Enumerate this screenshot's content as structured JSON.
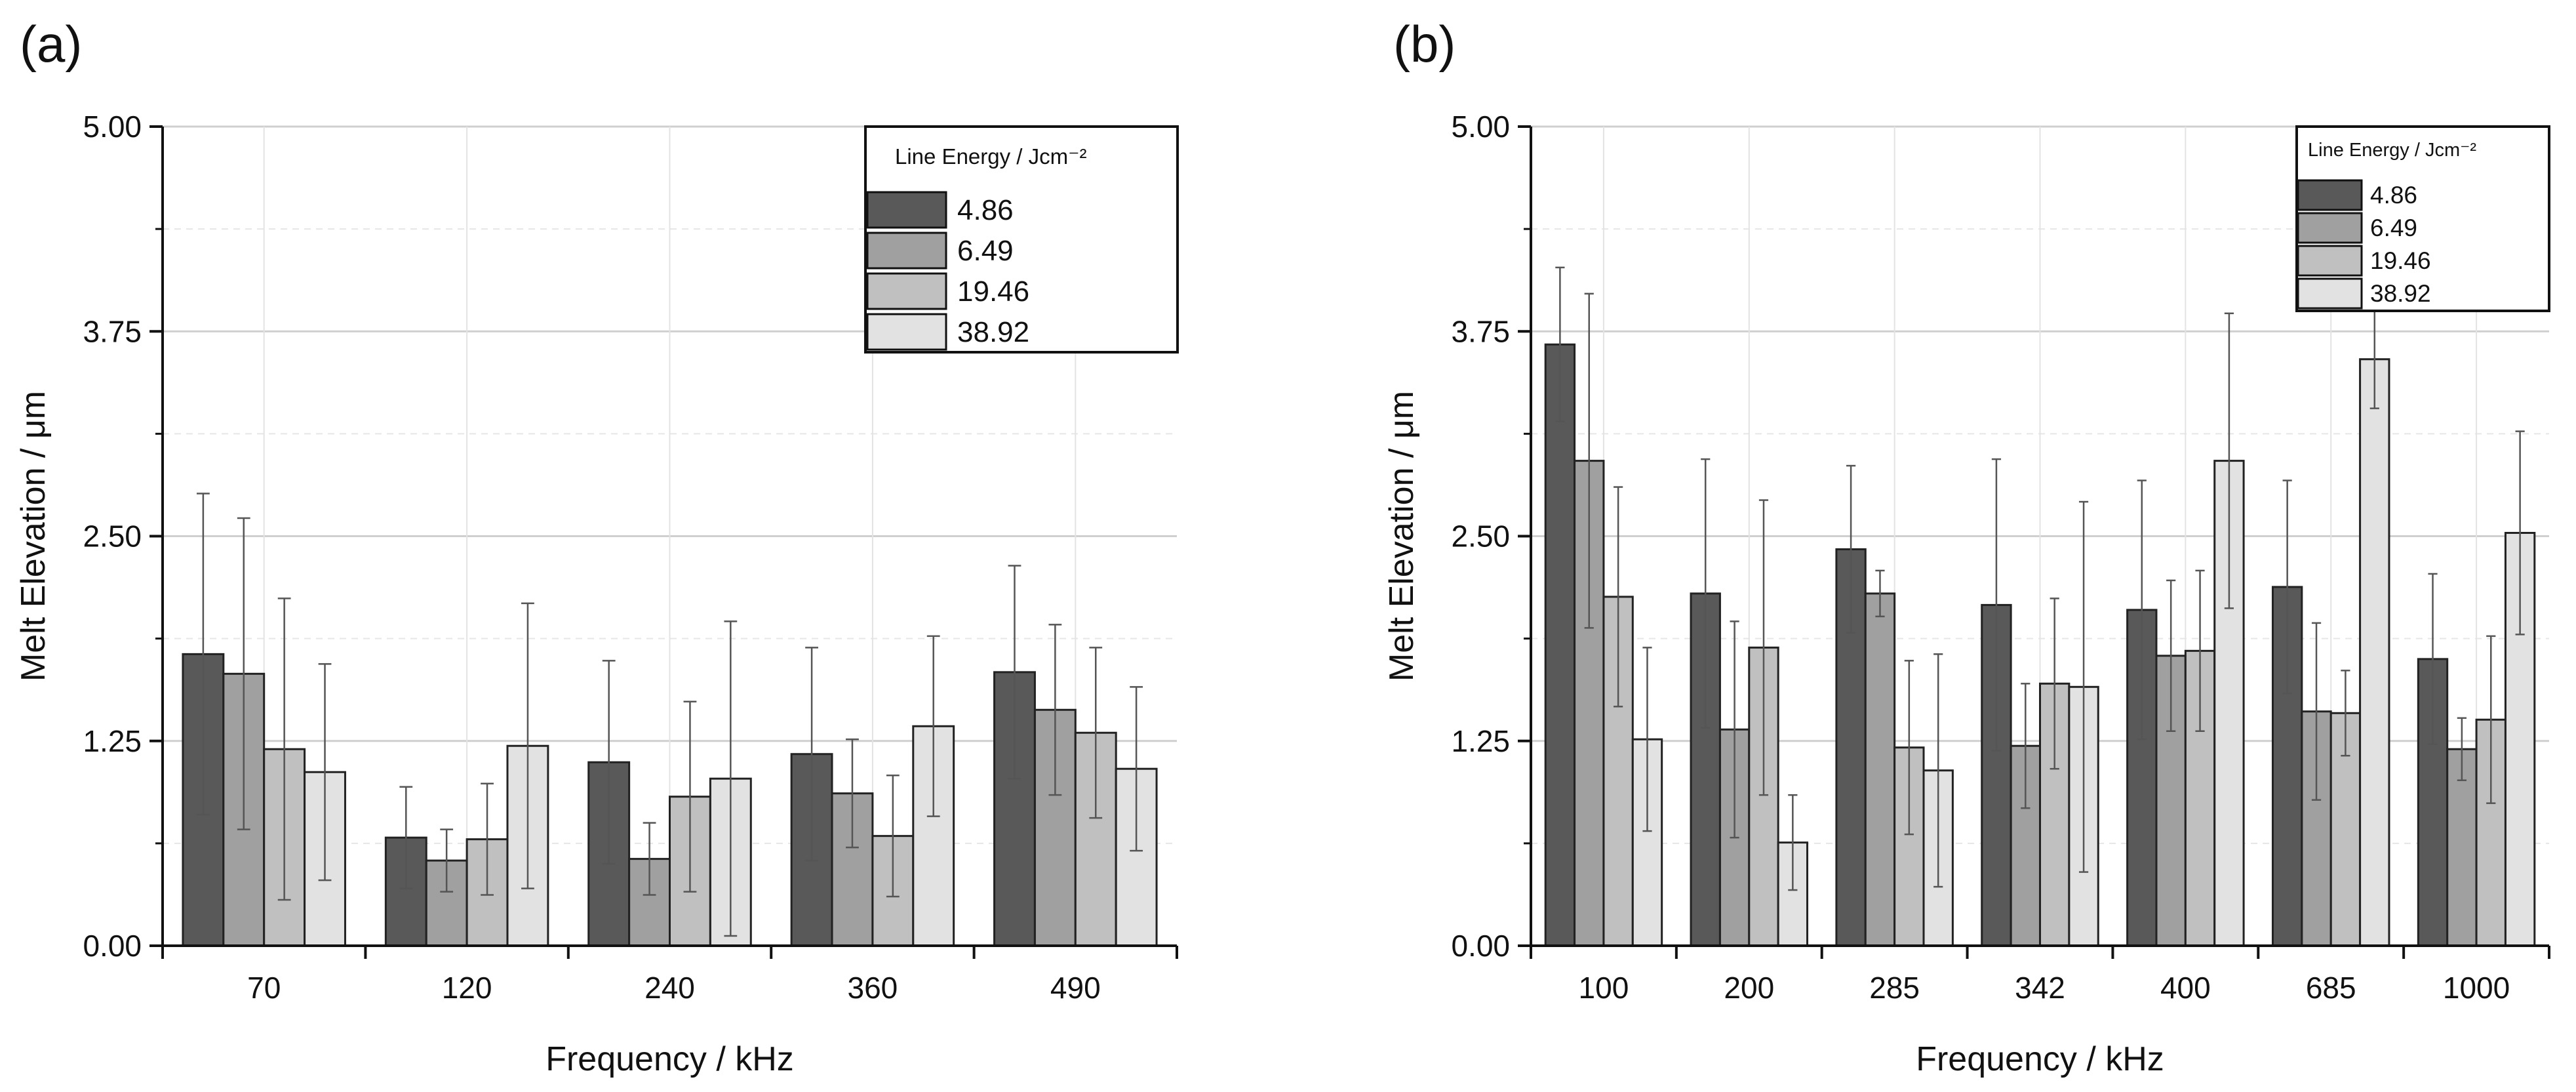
{
  "panels": {
    "a": {
      "label": "(a)"
    },
    "b": {
      "label": "(b)"
    }
  },
  "chart_data": [
    {
      "type": "bar",
      "panel": "(a)",
      "title": "",
      "xlabel": "Frequency / kHz",
      "ylabel": "Melt Elevation / μm",
      "ylim": [
        0,
        5
      ],
      "yticks": [
        "0.00",
        "1.25",
        "2.50",
        "3.75",
        "5.00"
      ],
      "grid": true,
      "legend_title": "Line Energy / Jcm⁻²",
      "legend_position": "top-right",
      "categories": [
        "70",
        "120",
        "240",
        "360",
        "490"
      ],
      "series": [
        {
          "name": "4.86",
          "color": "#595959",
          "values": [
            1.78,
            0.66,
            1.12,
            1.17,
            1.67
          ],
          "errors": [
            0.98,
            0.31,
            0.62,
            0.65,
            0.65
          ]
        },
        {
          "name": "6.49",
          "color": "#a0a0a0",
          "values": [
            1.66,
            0.52,
            0.53,
            0.93,
            1.44
          ],
          "errors": [
            0.95,
            0.19,
            0.22,
            0.33,
            0.52
          ]
        },
        {
          "name": "19.46",
          "color": "#c0c0c0",
          "values": [
            1.2,
            0.65,
            0.91,
            0.67,
            1.3
          ],
          "errors": [
            0.92,
            0.34,
            0.58,
            0.37,
            0.52
          ]
        },
        {
          "name": "38.92",
          "color": "#e2e2e2",
          "values": [
            1.06,
            1.22,
            1.02,
            1.34,
            1.08
          ],
          "errors": [
            0.66,
            0.87,
            0.96,
            0.55,
            0.5
          ]
        }
      ]
    },
    {
      "type": "bar",
      "panel": "(b)",
      "title": "",
      "xlabel": "Frequency / kHz",
      "ylabel": "Melt Elevation / μm",
      "ylim": [
        0,
        5
      ],
      "yticks": [
        "0.00",
        "1.25",
        "2.50",
        "3.75",
        "5.00"
      ],
      "grid": true,
      "legend_title": "Line Energy / Jcm⁻²",
      "legend_position": "top-right",
      "categories": [
        "100",
        "200",
        "285",
        "342",
        "400",
        "685",
        "1000"
      ],
      "series": [
        {
          "name": "4.86",
          "color": "#595959",
          "values": [
            3.67,
            2.15,
            2.42,
            2.08,
            2.05,
            2.19,
            1.75
          ],
          "errors": [
            0.47,
            0.82,
            0.51,
            0.89,
            0.79,
            0.65,
            0.52
          ]
        },
        {
          "name": "6.49",
          "color": "#a0a0a0",
          "values": [
            2.96,
            1.32,
            2.15,
            1.22,
            1.77,
            1.43,
            1.2
          ],
          "errors": [
            1.02,
            0.66,
            0.14,
            0.38,
            0.46,
            0.54,
            0.19
          ]
        },
        {
          "name": "19.46",
          "color": "#c0c0c0",
          "values": [
            2.13,
            1.82,
            1.21,
            1.6,
            1.8,
            1.42,
            1.38
          ],
          "errors": [
            0.67,
            0.9,
            0.53,
            0.52,
            0.49,
            0.26,
            0.51
          ]
        },
        {
          "name": "38.92",
          "color": "#e2e2e2",
          "values": [
            1.26,
            0.63,
            1.07,
            1.58,
            2.96,
            3.58,
            2.52
          ],
          "errors": [
            0.56,
            0.29,
            0.71,
            1.13,
            0.9,
            0.3,
            0.62
          ]
        }
      ]
    }
  ]
}
